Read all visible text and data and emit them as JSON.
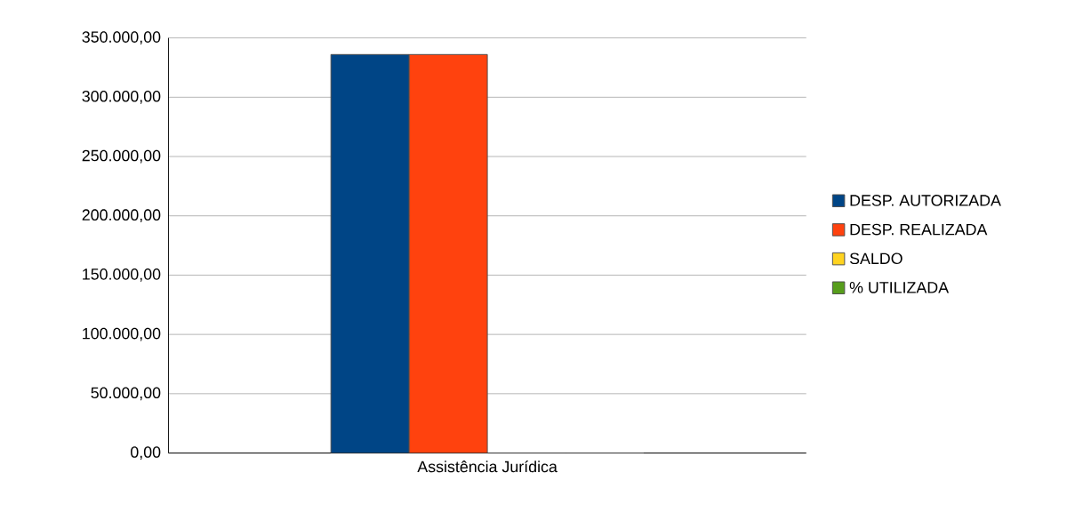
{
  "chart_data": {
    "type": "bar",
    "categories": [
      "Assistência Jurídica"
    ],
    "series": [
      {
        "name": "DESP. AUTORIZADA",
        "color": "#004586",
        "values": [
          336000
        ]
      },
      {
        "name": "DESP. REALIZADA",
        "color": "#ff420e",
        "values": [
          336000
        ]
      },
      {
        "name": "SALDO",
        "color": "#ffd320",
        "values": [
          0
        ]
      },
      {
        "name": "% UTILIZADA",
        "color": "#579d1c",
        "values": [
          0
        ]
      }
    ],
    "ylim": [
      0,
      350000
    ],
    "yticks": [
      {
        "value": 0,
        "label": "0,00"
      },
      {
        "value": 50000,
        "label": "50.000,00"
      },
      {
        "value": 100000,
        "label": "100.000,00"
      },
      {
        "value": 150000,
        "label": "150.000,00"
      },
      {
        "value": 200000,
        "label": "200.000,00"
      },
      {
        "value": 250000,
        "label": "250.000,00"
      },
      {
        "value": 300000,
        "label": "300.000,00"
      },
      {
        "value": 350000,
        "label": "350.000,00"
      }
    ],
    "grid": "y",
    "legend": "right"
  }
}
